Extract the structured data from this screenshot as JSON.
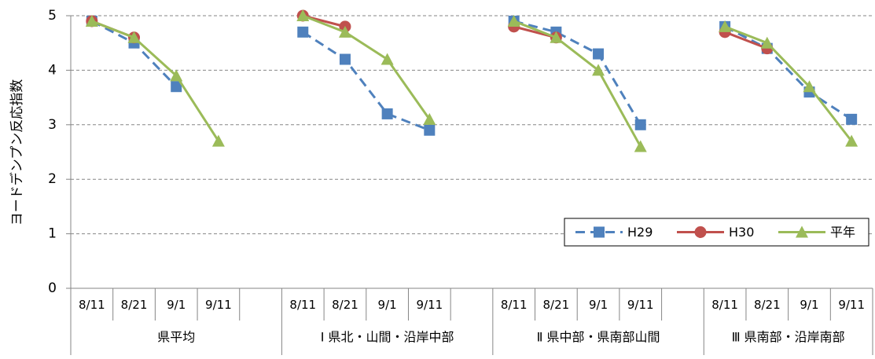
{
  "chart_data": {
    "type": "line",
    "y_label": "ヨードデンプン反応指数",
    "categories": [
      "8/11",
      "8/21",
      "9/1",
      "9/11",
      null,
      "8/11",
      "8/21",
      "9/1",
      "9/11",
      null,
      "8/11",
      "8/21",
      "9/1",
      "9/11",
      null,
      "8/11",
      "8/21",
      "9/1",
      "9/11"
    ],
    "groups": [
      {
        "label": "県平均",
        "span": 5
      },
      {
        "label": "Ⅰ 県北・山間・沿岸中部",
        "span": 5
      },
      {
        "label": "Ⅱ 県中部・県南部山間",
        "span": 5
      },
      {
        "label": "Ⅲ 県南部・沿岸南部",
        "span": 4
      }
    ],
    "series": [
      {
        "name": "H29",
        "color": "#4f81bd",
        "dashed": true,
        "marker": "square",
        "values": [
          4.9,
          4.5,
          3.7,
          null,
          null,
          4.7,
          4.2,
          3.2,
          2.9,
          null,
          4.9,
          4.7,
          4.3,
          3.0,
          null,
          4.8,
          4.4,
          3.6,
          3.1
        ]
      },
      {
        "name": "H30",
        "color": "#c0504d",
        "dashed": false,
        "marker": "circle",
        "values": [
          4.9,
          4.6,
          null,
          null,
          null,
          5.0,
          4.8,
          null,
          null,
          null,
          4.8,
          4.6,
          null,
          null,
          null,
          4.7,
          4.4,
          null,
          null
        ]
      },
      {
        "name": "平年",
        "color": "#9bbb59",
        "dashed": false,
        "marker": "triangle",
        "values": [
          4.9,
          4.6,
          3.9,
          2.7,
          null,
          5.0,
          4.7,
          4.2,
          3.1,
          null,
          4.9,
          4.6,
          4.0,
          2.6,
          null,
          4.8,
          4.5,
          3.7,
          2.7
        ]
      }
    ],
    "ylim": [
      0,
      5
    ],
    "yticks": [
      0,
      1,
      2,
      3,
      4,
      5
    ],
    "grid": true,
    "legend": "right"
  }
}
